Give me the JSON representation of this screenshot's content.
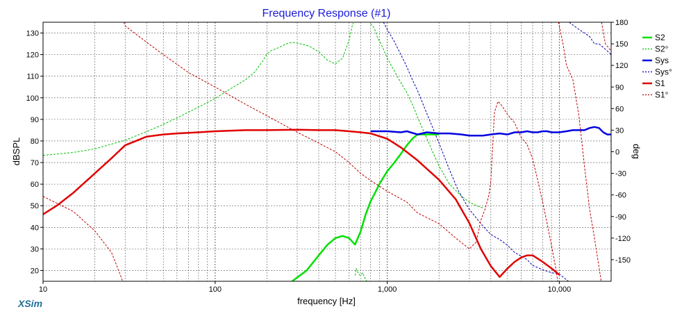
{
  "chart_data": {
    "type": "line",
    "title": "Frequency Response (#1)",
    "xlabel": "frequency [Hz]",
    "ylabel": "dBSPL",
    "y2label": "deg",
    "xscale": "log",
    "xlim": [
      10,
      20000
    ],
    "ylim": [
      15,
      135
    ],
    "y2lim": [
      -180,
      180
    ],
    "xticks": [
      {
        "value": 10,
        "label": "10"
      },
      {
        "value": 100,
        "label": "100"
      },
      {
        "value": 1000,
        "label": "1,000"
      },
      {
        "value": 10000,
        "label": "10,000"
      }
    ],
    "yticks": [
      {
        "value": 20,
        "label": "20"
      },
      {
        "value": 30,
        "label": "30"
      },
      {
        "value": 40,
        "label": "40"
      },
      {
        "value": 50,
        "label": "50"
      },
      {
        "value": 60,
        "label": "60"
      },
      {
        "value": 70,
        "label": "70"
      },
      {
        "value": 80,
        "label": "80"
      },
      {
        "value": 90,
        "label": "90"
      },
      {
        "value": 100,
        "label": "100"
      },
      {
        "value": 110,
        "label": "110"
      },
      {
        "value": 120,
        "label": "120"
      },
      {
        "value": 130,
        "label": "130"
      }
    ],
    "y2ticks": [
      {
        "value": 180,
        "label": "180"
      },
      {
        "value": 150,
        "label": "150"
      },
      {
        "value": 120,
        "label": "120"
      },
      {
        "value": 90,
        "label": "90"
      },
      {
        "value": 60,
        "label": "60"
      },
      {
        "value": 30,
        "label": "30"
      },
      {
        "value": 0,
        "label": "0"
      },
      {
        "value": -30,
        "label": "-30"
      },
      {
        "value": -60,
        "label": "-60"
      },
      {
        "value": -90,
        "label": "-90"
      },
      {
        "value": -120,
        "label": "-120"
      },
      {
        "value": -150,
        "label": "-150"
      }
    ],
    "grid": true,
    "legend_position": "right",
    "series": [
      {
        "name": "S2",
        "axis": "spl",
        "color": "#00e000",
        "style": "solid",
        "width": 2.5,
        "points": [
          [
            280,
            15
          ],
          [
            340,
            20
          ],
          [
            400,
            27
          ],
          [
            450,
            32
          ],
          [
            500,
            35
          ],
          [
            550,
            36
          ],
          [
            600,
            35
          ],
          [
            650,
            32
          ],
          [
            700,
            38
          ],
          [
            750,
            46
          ],
          [
            800,
            52
          ],
          [
            850,
            56
          ],
          [
            900,
            60
          ],
          [
            1000,
            66
          ],
          [
            1100,
            70
          ],
          [
            1200,
            74
          ],
          [
            1300,
            78
          ],
          [
            1400,
            81
          ],
          [
            1500,
            83
          ],
          [
            1700,
            83
          ],
          [
            2000,
            83
          ]
        ]
      },
      {
        "name": "S2°",
        "axis": "phase",
        "color": "#00c000",
        "style": "dotted",
        "width": 1,
        "points": [
          [
            10,
            -5
          ],
          [
            15,
            -1
          ],
          [
            20,
            4
          ],
          [
            30,
            16
          ],
          [
            40,
            28
          ],
          [
            50,
            38
          ],
          [
            60,
            47
          ],
          [
            70,
            55
          ],
          [
            80,
            62
          ],
          [
            100,
            74
          ],
          [
            120,
            86
          ],
          [
            150,
            100
          ],
          [
            170,
            111
          ],
          [
            190,
            127
          ],
          [
            200,
            136
          ],
          [
            210,
            140
          ],
          [
            230,
            144
          ],
          [
            260,
            150
          ],
          [
            280,
            152
          ],
          [
            300,
            151
          ],
          [
            350,
            147
          ],
          [
            400,
            139
          ],
          [
            450,
            127
          ],
          [
            500,
            122
          ],
          [
            550,
            130
          ],
          [
            600,
            155
          ],
          [
            630,
            178
          ],
          [
            640,
            178
          ],
          [
            650,
            -172
          ],
          [
            660,
            -162
          ],
          [
            680,
            -170
          ],
          [
            700,
            -172
          ],
          [
            720,
            -168
          ],
          [
            740,
            -175
          ],
          [
            760,
            -180
          ],
          [
            790,
            -180
          ],
          [
            800,
            178
          ],
          [
            820,
            175
          ],
          [
            840,
            172
          ],
          [
            860,
            165
          ],
          [
            880,
            158
          ],
          [
            920,
            150
          ],
          [
            960,
            140
          ],
          [
            1000,
            130
          ],
          [
            1100,
            112
          ],
          [
            1200,
            96
          ],
          [
            1300,
            82
          ],
          [
            1400,
            66
          ],
          [
            1500,
            48
          ],
          [
            1700,
            18
          ],
          [
            2000,
            -20
          ],
          [
            2300,
            -45
          ],
          [
            2700,
            -62
          ],
          [
            3000,
            -70
          ],
          [
            3300,
            -75
          ],
          [
            3600,
            -78
          ]
        ]
      },
      {
        "name": "Sys",
        "axis": "spl",
        "color": "#0000e0",
        "style": "solid",
        "width": 2.5,
        "points": [
          [
            800,
            84.5
          ],
          [
            1000,
            84.5
          ],
          [
            1200,
            84
          ],
          [
            1300,
            84.5
          ],
          [
            1500,
            83
          ],
          [
            1700,
            84
          ],
          [
            2000,
            83.5
          ],
          [
            2300,
            83.5
          ],
          [
            2700,
            83
          ],
          [
            3000,
            82.5
          ],
          [
            3300,
            82.5
          ],
          [
            3600,
            82.5
          ],
          [
            4000,
            83
          ],
          [
            4500,
            83.5
          ],
          [
            5000,
            83
          ],
          [
            5500,
            84
          ],
          [
            6000,
            84
          ],
          [
            6500,
            84.5
          ],
          [
            7000,
            84
          ],
          [
            7500,
            84
          ],
          [
            8000,
            84.5
          ],
          [
            8500,
            84.5
          ],
          [
            9000,
            84
          ],
          [
            10000,
            84
          ],
          [
            11000,
            84.5
          ],
          [
            12000,
            85
          ],
          [
            13000,
            85
          ],
          [
            14000,
            85
          ],
          [
            15000,
            86
          ],
          [
            16000,
            86.5
          ],
          [
            17000,
            86
          ],
          [
            18000,
            84
          ],
          [
            19000,
            83
          ],
          [
            20000,
            83
          ]
        ]
      },
      {
        "name": "Sys°",
        "axis": "phase",
        "color": "#0000b0",
        "style": "dotted",
        "width": 1,
        "points": [
          [
            950,
            180
          ],
          [
            1000,
            170
          ],
          [
            1100,
            153
          ],
          [
            1200,
            135
          ],
          [
            1300,
            118
          ],
          [
            1400,
            100
          ],
          [
            1500,
            85
          ],
          [
            1700,
            53
          ],
          [
            2000,
            12
          ],
          [
            2300,
            -25
          ],
          [
            2600,
            -55
          ],
          [
            3000,
            -80
          ],
          [
            3500,
            -100
          ],
          [
            4000,
            -115
          ],
          [
            4500,
            -122
          ],
          [
            5000,
            -130
          ],
          [
            5500,
            -140
          ],
          [
            6000,
            -145
          ],
          [
            6500,
            -150
          ],
          [
            7000,
            -158
          ],
          [
            8000,
            -164
          ],
          [
            9000,
            -168
          ],
          [
            10000,
            -170
          ],
          [
            11000,
            -178
          ],
          [
            11300,
            -180
          ],
          [
            11400,
            180
          ],
          [
            12000,
            176
          ],
          [
            13000,
            170
          ],
          [
            14000,
            165
          ],
          [
            15000,
            160
          ],
          [
            16000,
            150
          ],
          [
            17000,
            150
          ],
          [
            18000,
            145
          ],
          [
            19000,
            140
          ],
          [
            20000,
            135
          ]
        ]
      },
      {
        "name": "S1",
        "axis": "spl",
        "color": "#e00000",
        "style": "solid",
        "width": 2.5,
        "points": [
          [
            10,
            46
          ],
          [
            12,
            50
          ],
          [
            15,
            56
          ],
          [
            20,
            65
          ],
          [
            25,
            72
          ],
          [
            30,
            78
          ],
          [
            40,
            82
          ],
          [
            50,
            83
          ],
          [
            60,
            83.5
          ],
          [
            80,
            84
          ],
          [
            100,
            84.5
          ],
          [
            150,
            85
          ],
          [
            200,
            85
          ],
          [
            300,
            85.2
          ],
          [
            400,
            85
          ],
          [
            500,
            85
          ],
          [
            600,
            84.5
          ],
          [
            700,
            84
          ],
          [
            800,
            83.5
          ],
          [
            1000,
            81
          ],
          [
            1200,
            77
          ],
          [
            1500,
            71
          ],
          [
            2000,
            62
          ],
          [
            2500,
            53
          ],
          [
            3000,
            42
          ],
          [
            3500,
            30
          ],
          [
            4000,
            22
          ],
          [
            4500,
            17
          ],
          [
            5000,
            21
          ],
          [
            5500,
            24
          ],
          [
            6000,
            26
          ],
          [
            6500,
            27
          ],
          [
            7000,
            27
          ],
          [
            8000,
            24
          ],
          [
            9000,
            21
          ],
          [
            10000,
            18
          ]
        ]
      },
      {
        "name": "S1°",
        "axis": "phase",
        "color": "#c00000",
        "style": "dotted",
        "width": 1,
        "points": [
          [
            10,
            -62
          ],
          [
            15,
            -83
          ],
          [
            20,
            -110
          ],
          [
            25,
            -140
          ],
          [
            28,
            -170
          ],
          [
            29,
            -180
          ],
          [
            29.5,
            180
          ],
          [
            30,
            175
          ],
          [
            40,
            152
          ],
          [
            50,
            135
          ],
          [
            70,
            110
          ],
          [
            100,
            90
          ],
          [
            150,
            66
          ],
          [
            200,
            50
          ],
          [
            300,
            27
          ],
          [
            400,
            12
          ],
          [
            500,
            0
          ],
          [
            600,
            -15
          ],
          [
            700,
            -30
          ],
          [
            800,
            -40
          ],
          [
            1000,
            -55
          ],
          [
            1300,
            -70
          ],
          [
            1500,
            -85
          ],
          [
            2000,
            -100
          ],
          [
            2500,
            -120
          ],
          [
            3000,
            -135
          ],
          [
            3300,
            -125
          ],
          [
            3500,
            -95
          ],
          [
            3700,
            -80
          ],
          [
            3900,
            -60
          ],
          [
            4000,
            -40
          ],
          [
            4200,
            55
          ],
          [
            4400,
            70
          ],
          [
            4600,
            65
          ],
          [
            5000,
            52
          ],
          [
            5500,
            40
          ],
          [
            6000,
            20
          ],
          [
            6500,
            10
          ],
          [
            7000,
            -10
          ],
          [
            7500,
            -40
          ],
          [
            8000,
            -70
          ],
          [
            8500,
            -100
          ],
          [
            9000,
            -130
          ],
          [
            9500,
            -160
          ],
          [
            9800,
            -180
          ],
          [
            9900,
            180
          ],
          [
            10500,
            150
          ],
          [
            11000,
            120
          ],
          [
            12000,
            100
          ],
          [
            13000,
            50
          ],
          [
            14000,
            -20
          ],
          [
            15000,
            -80
          ],
          [
            16000,
            -120
          ],
          [
            17000,
            -160
          ],
          [
            17500,
            -180
          ],
          [
            17600,
            180
          ],
          [
            18500,
            150
          ],
          [
            20000,
            140
          ]
        ]
      }
    ],
    "legend": [
      {
        "label": "S2",
        "color": "#00e000",
        "style": "solid"
      },
      {
        "label": "S2°",
        "color": "#00c000",
        "style": "dotted"
      },
      {
        "label": "Sys",
        "color": "#0000e0",
        "style": "solid"
      },
      {
        "label": "Sys°",
        "color": "#0000b0",
        "style": "dotted"
      },
      {
        "label": "S1",
        "color": "#e00000",
        "style": "solid"
      },
      {
        "label": "S1°",
        "color": "#c00000",
        "style": "dotted"
      }
    ]
  },
  "brand": "XSim"
}
